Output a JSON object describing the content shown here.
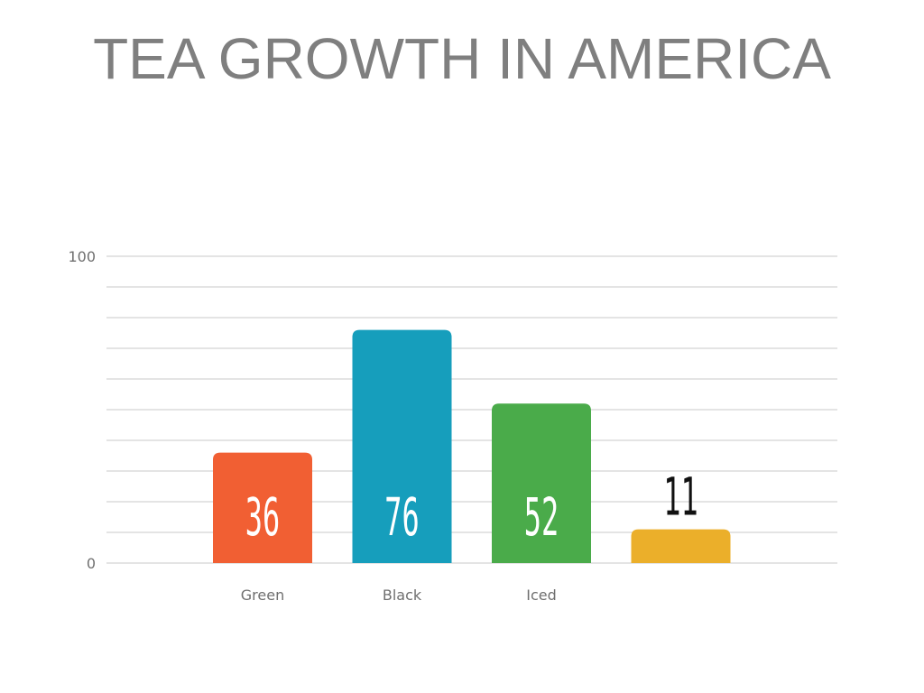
{
  "slide": {
    "title": "TEA GROWTH IN AMERICA"
  },
  "chart_data": {
    "type": "bar",
    "categories": [
      "Green",
      "Black",
      "Iced",
      ""
    ],
    "values": [
      36,
      76,
      52,
      11
    ],
    "colors": [
      "#f15f33",
      "#169ebc",
      "#4aab4a",
      "#ebaf2a"
    ],
    "data_label_colors": [
      "#ffffff",
      "#ffffff",
      "#ffffff",
      "#111111"
    ],
    "ylim": [
      0,
      100
    ],
    "y_ticks": [
      0,
      100
    ],
    "gridline_step": 10,
    "grid": true,
    "title": "",
    "xlabel": "",
    "ylabel": ""
  }
}
